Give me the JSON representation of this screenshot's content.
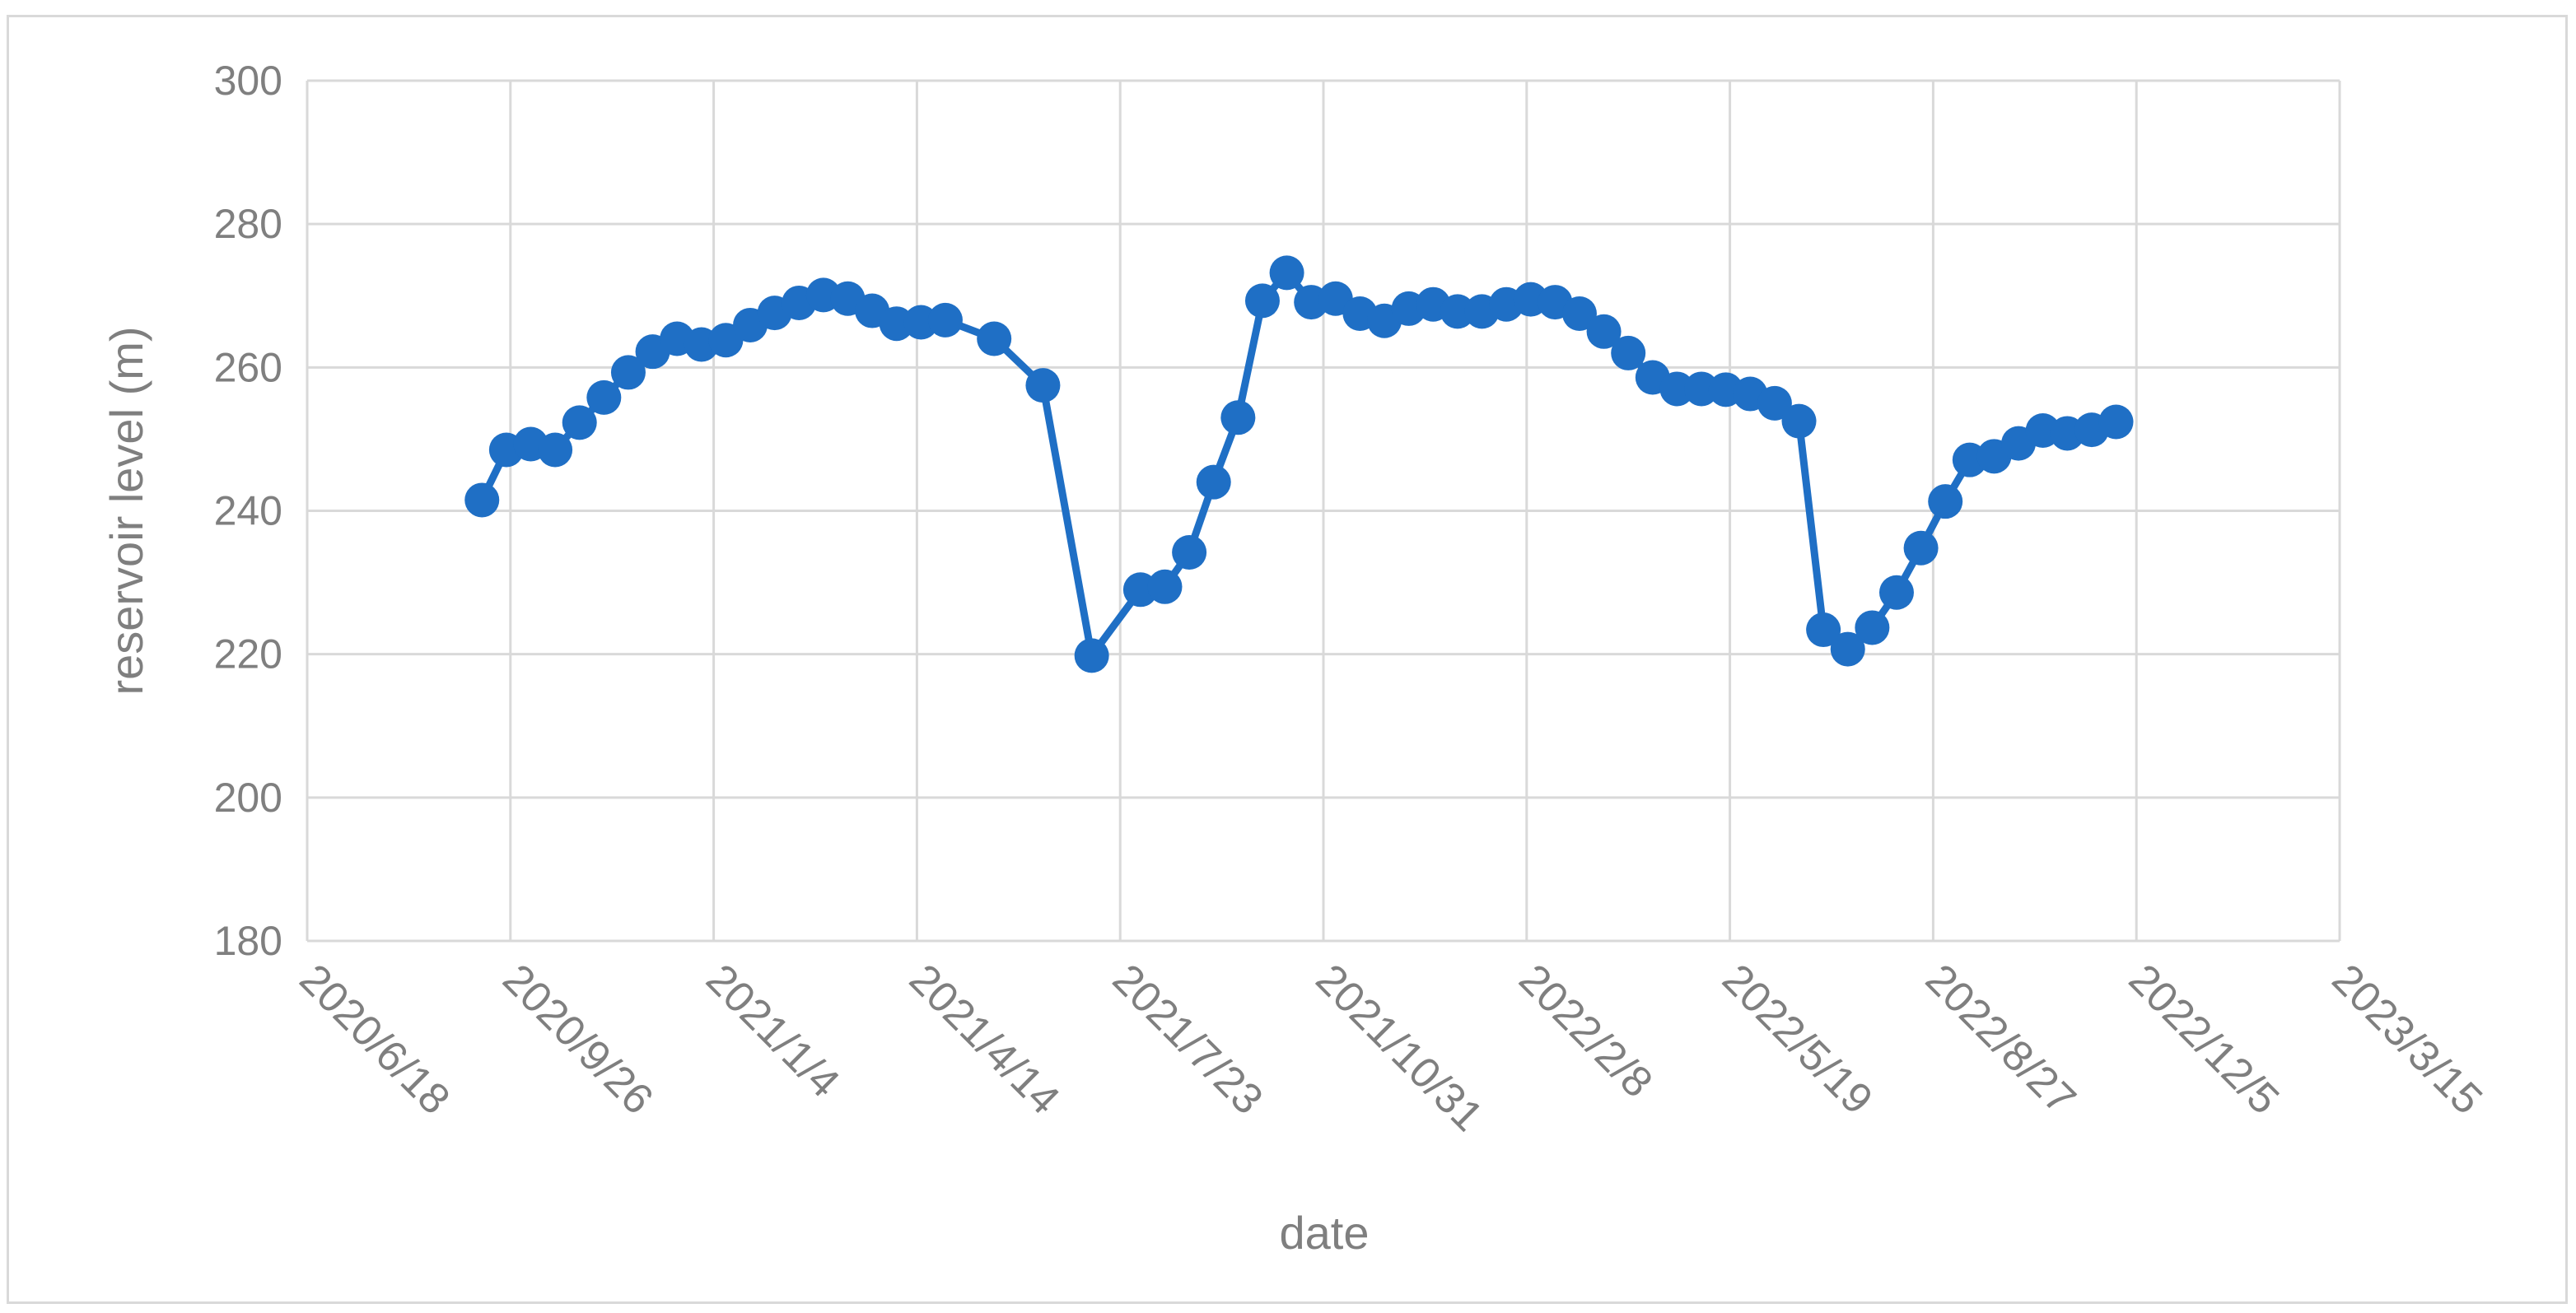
{
  "chart_data": {
    "type": "line",
    "title": "",
    "xlabel": "date",
    "ylabel": "reservoir level (m)",
    "ylim": [
      180,
      300
    ],
    "yticks": [
      180,
      200,
      220,
      240,
      260,
      280,
      300
    ],
    "xlim": [
      "2020-06-18",
      "2023-03-15"
    ],
    "xtick_labels": [
      "2020/6/18",
      "2020/9/26",
      "2021/1/4",
      "2021/4/14",
      "2021/7/23",
      "2021/10/31",
      "2022/2/8",
      "2022/5/19",
      "2022/8/27",
      "2022/12/5",
      "2023/3/15"
    ],
    "xticks": [
      "2020-06-18",
      "2020-09-26",
      "2021-01-04",
      "2021-04-14",
      "2021-07-23",
      "2021-10-31",
      "2022-02-08",
      "2022-05-19",
      "2022-08-27",
      "2022-12-05",
      "2023-03-15"
    ],
    "grid": true,
    "legend": "none",
    "line_color": "#1f6fc5",
    "series": [
      {
        "x": [
          "2020-09-12",
          "2020-09-24",
          "2020-10-06",
          "2020-10-18",
          "2020-10-30",
          "2020-11-11",
          "2020-11-23",
          "2020-12-05",
          "2020-12-17",
          "2020-12-29",
          "2021-01-10",
          "2021-01-22",
          "2021-02-03",
          "2021-02-15",
          "2021-02-27",
          "2021-03-11",
          "2021-03-23",
          "2021-04-04",
          "2021-04-16",
          "2021-04-28",
          "2021-05-22",
          "2021-06-15",
          "2021-07-09",
          "2021-08-02",
          "2021-08-14",
          "2021-08-26",
          "2021-09-07",
          "2021-09-19",
          "2021-10-01",
          "2021-10-13",
          "2021-10-25",
          "2021-11-06",
          "2021-11-18",
          "2021-11-30",
          "2021-12-12",
          "2021-12-24",
          "2022-01-05",
          "2022-01-17",
          "2022-01-29",
          "2022-02-10",
          "2022-02-22",
          "2022-03-06",
          "2022-03-18",
          "2022-03-30",
          "2022-04-11",
          "2022-04-23",
          "2022-05-05",
          "2022-05-17",
          "2022-05-29",
          "2022-06-10",
          "2022-06-22",
          "2022-07-04",
          "2022-07-16",
          "2022-07-28",
          "2022-08-09",
          "2022-08-21",
          "2022-09-02",
          "2022-09-14",
          "2022-09-26",
          "2022-10-08",
          "2022-10-20",
          "2022-11-01",
          "2022-11-13",
          "2022-11-25"
        ],
        "values": [
          241.5,
          248.5,
          249.3,
          248.5,
          252.3,
          255.8,
          259.3,
          262.2,
          264.0,
          263.2,
          263.8,
          265.9,
          267.6,
          269.0,
          270.1,
          269.6,
          267.9,
          266.1,
          266.3,
          266.6,
          264.0,
          257.5,
          219.8,
          229.0,
          229.4,
          234.2,
          244.0,
          253.0,
          269.3,
          273.2,
          269.1,
          269.6,
          267.5,
          266.5,
          268.2,
          268.8,
          267.8,
          267.8,
          268.8,
          269.5,
          269.1,
          267.5,
          265.0,
          262.0,
          258.6,
          257.0,
          257.0,
          256.9,
          256.3,
          255.0,
          252.5,
          223.4,
          220.7,
          223.7,
          228.6,
          234.8,
          241.3,
          247.1,
          247.6,
          249.4,
          251.2,
          250.8,
          251.3,
          252.4
        ]
      }
    ]
  }
}
